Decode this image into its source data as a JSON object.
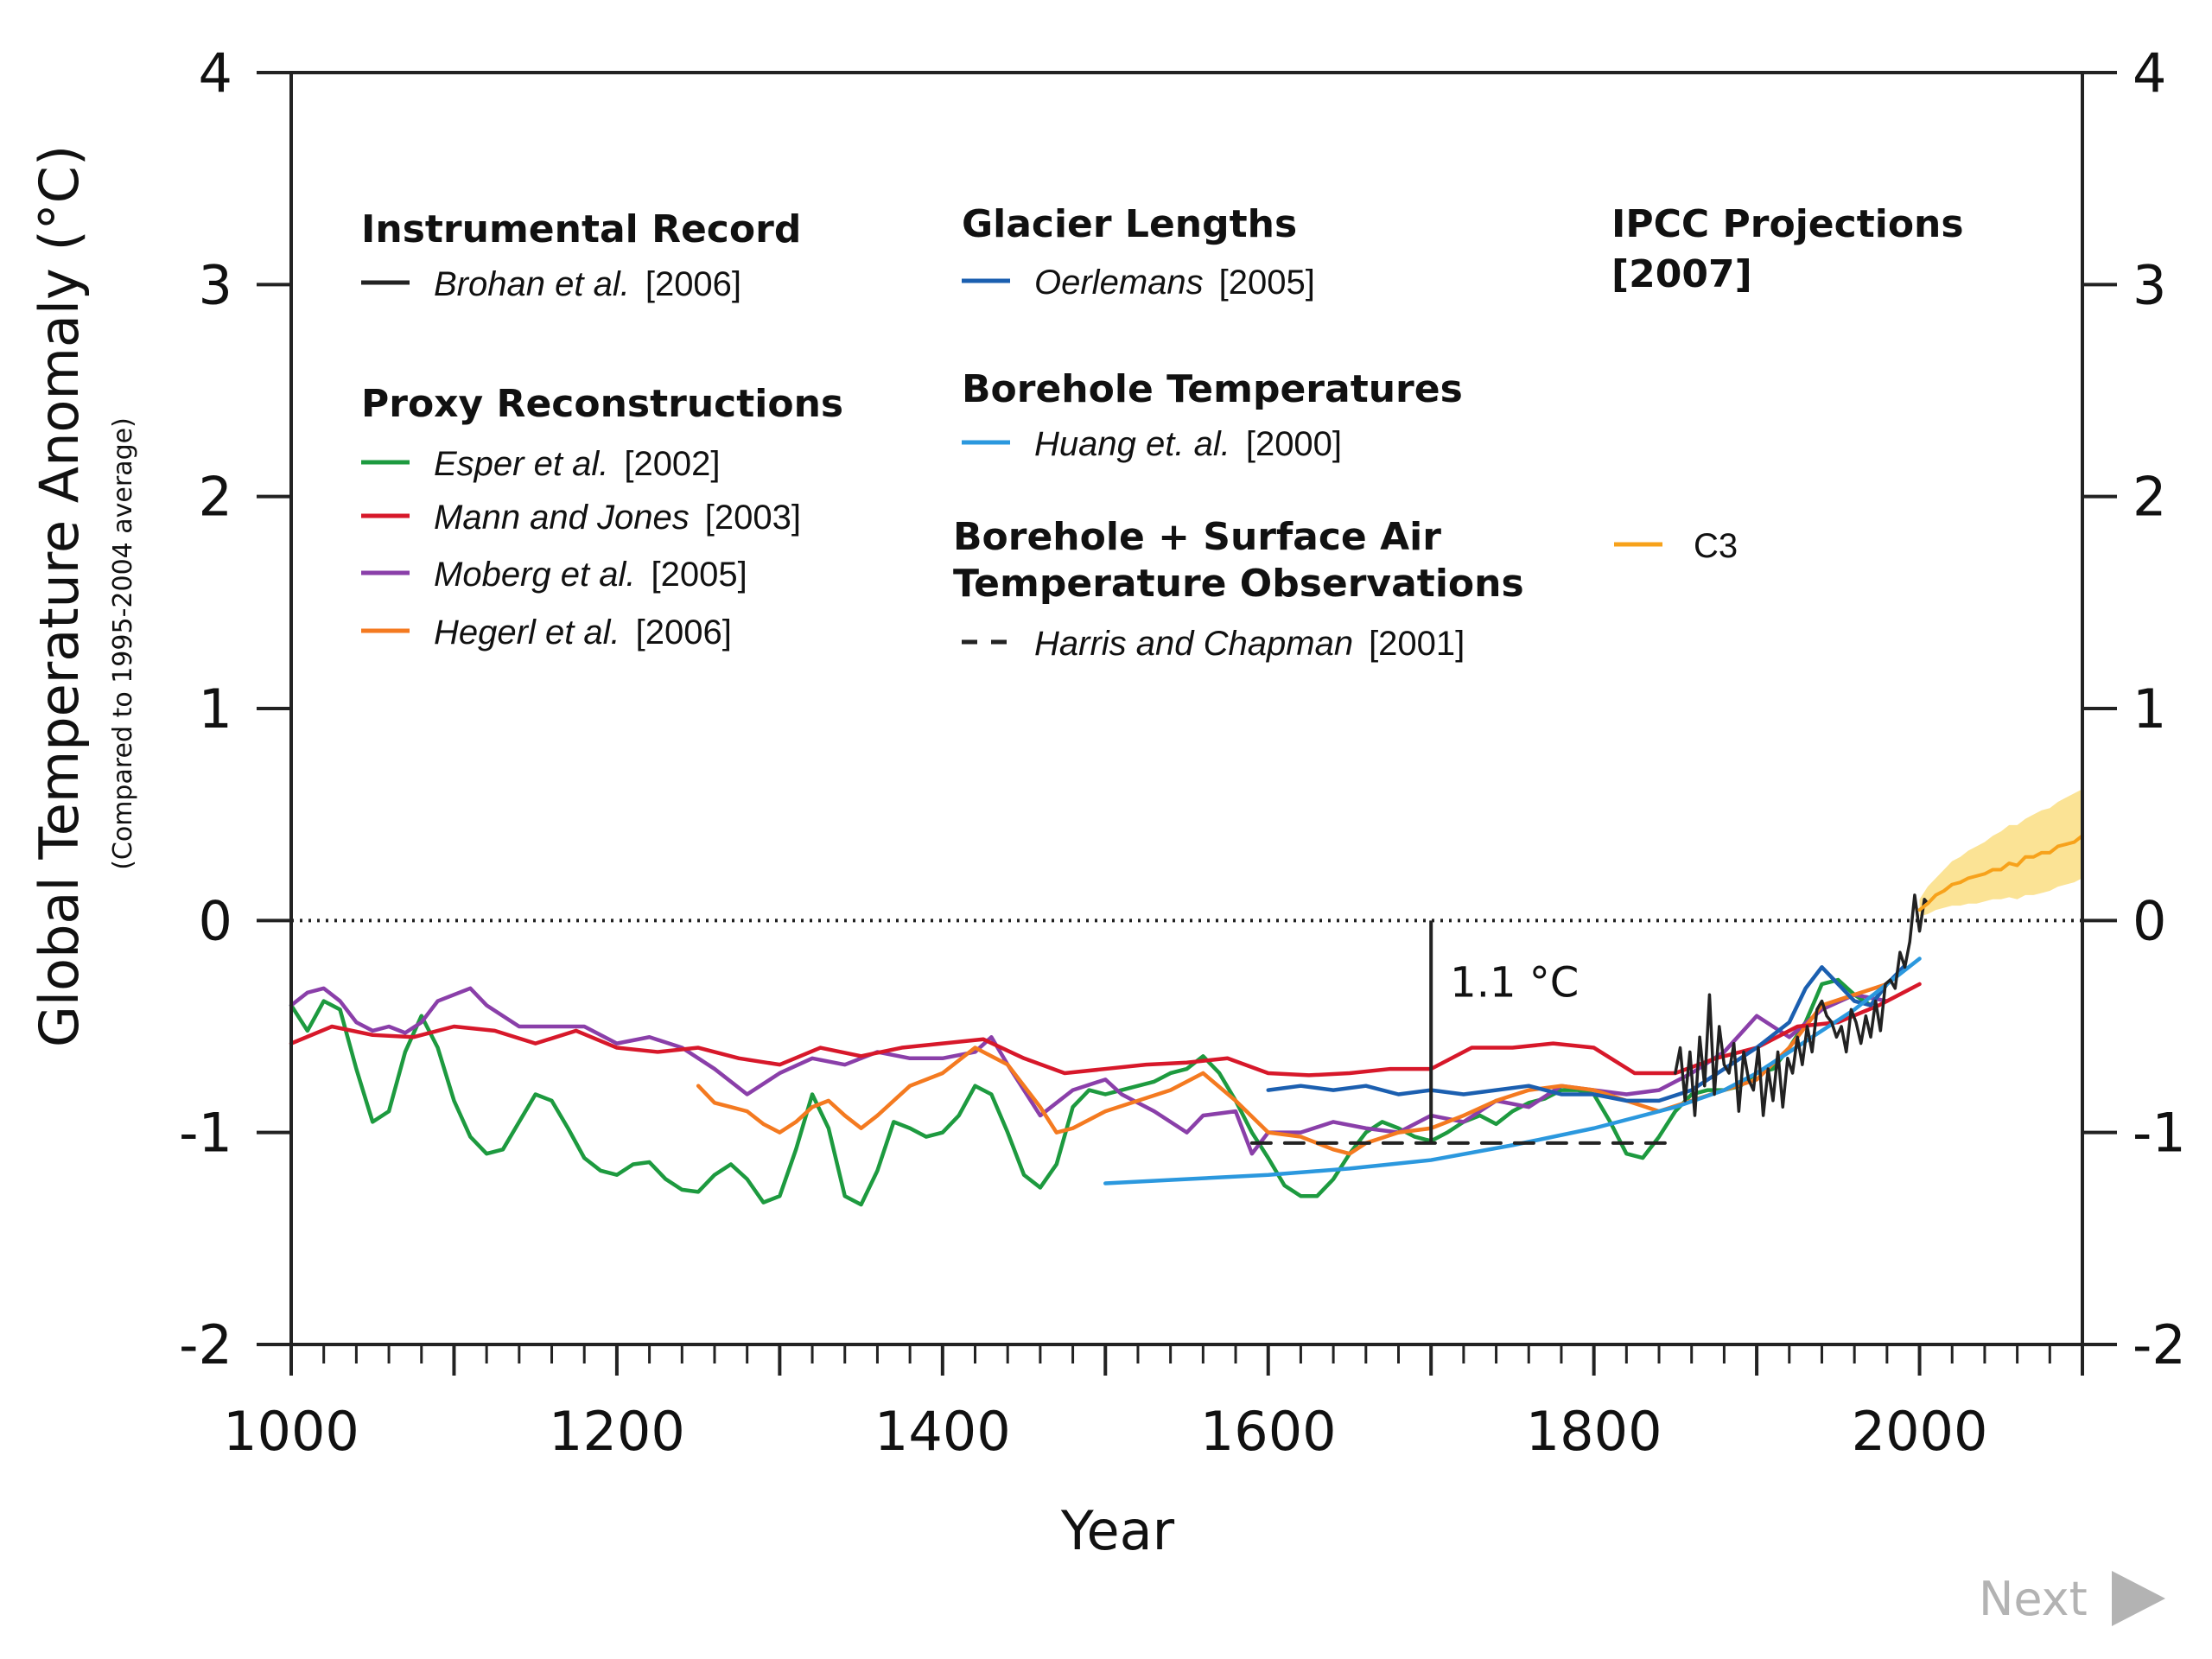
{
  "chart_data": {
    "type": "line",
    "title": "",
    "xlabel": "Year",
    "ylabel": "Global Temperature Anomaly (°C)",
    "ylabel_sub": "(Compared to 1995-2004 average)",
    "xlim": [
      1000,
      2100
    ],
    "ylim": [
      -2,
      4
    ],
    "x_ticks": [
      1000,
      1200,
      1400,
      1600,
      1800,
      2000
    ],
    "x_tick_labels": [
      "1000",
      "1200",
      "1400",
      "1600",
      "1800",
      "2000"
    ],
    "y_ticks": [
      -2,
      -1,
      0,
      1,
      2,
      3,
      4
    ],
    "y_tick_labels": [
      "-2",
      "-1",
      "0",
      "1",
      "2",
      "3",
      "4"
    ],
    "grid": false,
    "zero_line": "dotted",
    "legend": {
      "groups": [
        {
          "heading": "Instrumental Record",
          "entries": [
            {
              "author": "Brohan et al.",
              "year": "[2006]",
              "color": "#222222",
              "dash": false
            }
          ]
        },
        {
          "heading": "Proxy Reconstructions",
          "entries": [
            {
              "author": "Esper et al.",
              "year": "[2002]",
              "color": "#1d9a3f",
              "dash": false
            },
            {
              "author": "Mann and Jones",
              "year": "[2003]",
              "color": "#d7182a",
              "dash": false
            },
            {
              "author": "Moberg et al.",
              "year": "[2005]",
              "color": "#8a3fa9",
              "dash": false
            },
            {
              "author": "Hegerl et al.",
              "year": "[2006]",
              "color": "#f47a20",
              "dash": false
            }
          ]
        },
        {
          "heading": "Glacier Lengths",
          "entries": [
            {
              "author": "Oerlemans",
              "year": "[2005]",
              "color": "#1b5fb0",
              "dash": false
            }
          ]
        },
        {
          "heading": "Borehole Temperatures",
          "entries": [
            {
              "author": "Huang et. al.",
              "year": "[2000]",
              "color": "#2b98de",
              "dash": false
            }
          ]
        },
        {
          "heading_line1": "Borehole + Surface Air",
          "heading_line2": "Temperature Observations",
          "entries": [
            {
              "author": "Harris and Chapman",
              "year": "[2001]",
              "color": "#222222",
              "dash": true
            }
          ]
        },
        {
          "heading_line1": "IPCC  Projections",
          "heading_line2": "[2007]",
          "entries": [
            {
              "label": "C3",
              "color": "#f7a21b",
              "dash": false
            }
          ]
        }
      ]
    },
    "annotations": [
      {
        "text": "1.1 °C",
        "x": 1700,
        "y_from": 0,
        "y_to": -1.05
      }
    ],
    "series": [
      {
        "name": "Brohan et al. [2006]",
        "color": "#222222",
        "width": 3.5,
        "x": [
          1850,
          1853,
          1856,
          1859,
          1862,
          1865,
          1868,
          1871,
          1874,
          1877,
          1880,
          1883,
          1886,
          1889,
          1892,
          1895,
          1898,
          1901,
          1904,
          1907,
          1910,
          1913,
          1916,
          1919,
          1922,
          1925,
          1928,
          1931,
          1934,
          1937,
          1940,
          1943,
          1946,
          1949,
          1952,
          1955,
          1958,
          1961,
          1964,
          1967,
          1970,
          1973,
          1976,
          1979,
          1982,
          1985,
          1988,
          1991,
          1994,
          1997,
          2000,
          2003,
          2005
        ],
        "y": [
          -0.72,
          -0.6,
          -0.85,
          -0.62,
          -0.92,
          -0.55,
          -0.78,
          -0.35,
          -0.82,
          -0.5,
          -0.68,
          -0.72,
          -0.58,
          -0.9,
          -0.62,
          -0.75,
          -0.8,
          -0.6,
          -0.92,
          -0.7,
          -0.85,
          -0.62,
          -0.88,
          -0.65,
          -0.72,
          -0.55,
          -0.68,
          -0.5,
          -0.62,
          -0.42,
          -0.38,
          -0.45,
          -0.48,
          -0.55,
          -0.5,
          -0.62,
          -0.42,
          -0.48,
          -0.58,
          -0.45,
          -0.55,
          -0.38,
          -0.52,
          -0.3,
          -0.28,
          -0.32,
          -0.15,
          -0.22,
          -0.1,
          0.12,
          -0.05,
          0.1,
          0.08
        ]
      },
      {
        "name": "Esper et al. [2002]",
        "color": "#1d9a3f",
        "width": 4.5,
        "x": [
          1000,
          1010,
          1020,
          1030,
          1040,
          1050,
          1060,
          1070,
          1080,
          1090,
          1100,
          1110,
          1120,
          1130,
          1140,
          1150,
          1160,
          1170,
          1180,
          1190,
          1200,
          1210,
          1220,
          1230,
          1240,
          1250,
          1260,
          1270,
          1280,
          1290,
          1300,
          1310,
          1320,
          1330,
          1340,
          1350,
          1360,
          1370,
          1380,
          1390,
          1400,
          1410,
          1420,
          1430,
          1440,
          1450,
          1460,
          1470,
          1480,
          1490,
          1500,
          1510,
          1520,
          1530,
          1540,
          1550,
          1560,
          1570,
          1580,
          1590,
          1600,
          1610,
          1620,
          1630,
          1640,
          1650,
          1660,
          1670,
          1680,
          1690,
          1700,
          1710,
          1720,
          1730,
          1740,
          1750,
          1760,
          1770,
          1780,
          1790,
          1800,
          1810,
          1820,
          1830,
          1840,
          1850,
          1860,
          1870,
          1880,
          1890,
          1900,
          1910,
          1920,
          1930,
          1940,
          1950,
          1960,
          1970,
          1980
        ],
        "y": [
          -0.4,
          -0.52,
          -0.38,
          -0.42,
          -0.7,
          -0.95,
          -0.9,
          -0.62,
          -0.45,
          -0.6,
          -0.85,
          -1.02,
          -1.1,
          -1.08,
          -0.95,
          -0.82,
          -0.85,
          -0.98,
          -1.12,
          -1.18,
          -1.2,
          -1.15,
          -1.14,
          -1.22,
          -1.27,
          -1.28,
          -1.2,
          -1.15,
          -1.22,
          -1.33,
          -1.3,
          -1.08,
          -0.82,
          -0.98,
          -1.3,
          -1.34,
          -1.18,
          -0.95,
          -0.98,
          -1.02,
          -1.0,
          -0.92,
          -0.78,
          -0.82,
          -1.0,
          -1.2,
          -1.26,
          -1.15,
          -0.88,
          -0.8,
          -0.82,
          -0.8,
          -0.78,
          -0.76,
          -0.72,
          -0.7,
          -0.64,
          -0.72,
          -0.85,
          -1.0,
          -1.12,
          -1.25,
          -1.3,
          -1.3,
          -1.22,
          -1.1,
          -1.0,
          -0.95,
          -0.98,
          -1.02,
          -1.04,
          -1.0,
          -0.95,
          -0.92,
          -0.96,
          -0.9,
          -0.86,
          -0.84,
          -0.8,
          -0.8,
          -0.82,
          -0.95,
          -1.1,
          -1.12,
          -1.02,
          -0.9,
          -0.82,
          -0.8,
          -0.8,
          -0.78,
          -0.72,
          -0.7,
          -0.6,
          -0.48,
          -0.3,
          -0.28,
          -0.35,
          -0.4,
          -0.3
        ]
      },
      {
        "name": "Mann and Jones [2003]",
        "color": "#d7182a",
        "width": 4.5,
        "x": [
          1000,
          1025,
          1050,
          1075,
          1100,
          1125,
          1150,
          1175,
          1200,
          1225,
          1250,
          1275,
          1300,
          1325,
          1350,
          1375,
          1400,
          1425,
          1450,
          1475,
          1500,
          1525,
          1550,
          1575,
          1600,
          1625,
          1650,
          1675,
          1700,
          1725,
          1750,
          1775,
          1800,
          1825,
          1850,
          1875,
          1900,
          1925,
          1950,
          1975,
          2000
        ],
        "y": [
          -0.58,
          -0.5,
          -0.54,
          -0.55,
          -0.5,
          -0.52,
          -0.58,
          -0.52,
          -0.6,
          -0.62,
          -0.6,
          -0.65,
          -0.68,
          -0.6,
          -0.64,
          -0.6,
          -0.58,
          -0.56,
          -0.65,
          -0.72,
          -0.7,
          -0.68,
          -0.67,
          -0.65,
          -0.72,
          -0.73,
          -0.72,
          -0.7,
          -0.7,
          -0.6,
          -0.6,
          -0.58,
          -0.6,
          -0.72,
          -0.72,
          -0.65,
          -0.6,
          -0.5,
          -0.48,
          -0.4,
          -0.3
        ]
      },
      {
        "name": "Moberg et al. [2005]",
        "color": "#8a3fa9",
        "width": 4.5,
        "x": [
          1000,
          1010,
          1020,
          1030,
          1040,
          1050,
          1060,
          1070,
          1080,
          1090,
          1100,
          1110,
          1120,
          1140,
          1160,
          1180,
          1200,
          1220,
          1240,
          1260,
          1280,
          1300,
          1320,
          1340,
          1360,
          1380,
          1400,
          1420,
          1430,
          1440,
          1460,
          1480,
          1500,
          1510,
          1530,
          1550,
          1560,
          1580,
          1590,
          1600,
          1620,
          1640,
          1660,
          1680,
          1700,
          1720,
          1740,
          1760,
          1780,
          1800,
          1820,
          1840,
          1860,
          1880,
          1900,
          1910,
          1920,
          1940,
          1960,
          1980
        ],
        "y": [
          -0.4,
          -0.34,
          -0.32,
          -0.38,
          -0.48,
          -0.52,
          -0.5,
          -0.53,
          -0.48,
          -0.38,
          -0.35,
          -0.32,
          -0.4,
          -0.5,
          -0.5,
          -0.5,
          -0.58,
          -0.55,
          -0.6,
          -0.7,
          -0.82,
          -0.72,
          -0.65,
          -0.68,
          -0.62,
          -0.65,
          -0.65,
          -0.62,
          -0.55,
          -0.68,
          -0.92,
          -0.8,
          -0.75,
          -0.82,
          -0.9,
          -1.0,
          -0.92,
          -0.9,
          -1.1,
          -1.0,
          -1.0,
          -0.95,
          -0.98,
          -1.0,
          -0.92,
          -0.95,
          -0.85,
          -0.88,
          -0.78,
          -0.8,
          -0.82,
          -0.8,
          -0.72,
          -0.62,
          -0.45,
          -0.5,
          -0.55,
          -0.42,
          -0.35,
          -0.38
        ]
      },
      {
        "name": "Hegerl et al. [2006]",
        "color": "#f47a20",
        "width": 4.5,
        "x": [
          1250,
          1260,
          1270,
          1280,
          1290,
          1300,
          1310,
          1320,
          1330,
          1340,
          1350,
          1360,
          1370,
          1380,
          1400,
          1420,
          1440,
          1460,
          1470,
          1480,
          1500,
          1520,
          1540,
          1560,
          1580,
          1600,
          1620,
          1640,
          1650,
          1660,
          1680,
          1700,
          1720,
          1740,
          1760,
          1780,
          1800,
          1820,
          1840,
          1860,
          1880,
          1900,
          1920,
          1940,
          1960,
          1980
        ],
        "y": [
          -0.78,
          -0.86,
          -0.88,
          -0.9,
          -0.96,
          -1.0,
          -0.95,
          -0.88,
          -0.85,
          -0.92,
          -0.98,
          -0.92,
          -0.85,
          -0.78,
          -0.72,
          -0.6,
          -0.68,
          -0.88,
          -1.0,
          -0.98,
          -0.9,
          -0.85,
          -0.8,
          -0.72,
          -0.85,
          -1.0,
          -1.02,
          -1.08,
          -1.1,
          -1.05,
          -1.0,
          -0.98,
          -0.92,
          -0.85,
          -0.8,
          -0.78,
          -0.8,
          -0.85,
          -0.9,
          -0.85,
          -0.8,
          -0.75,
          -0.6,
          -0.4,
          -0.35,
          -0.3
        ]
      },
      {
        "name": "Oerlemans [2005]",
        "color": "#1b5fb0",
        "width": 4.5,
        "x": [
          1600,
          1620,
          1640,
          1660,
          1680,
          1700,
          1720,
          1740,
          1760,
          1780,
          1800,
          1820,
          1840,
          1860,
          1880,
          1900,
          1920,
          1930,
          1940,
          1950,
          1960,
          1970,
          1980,
          1990
        ],
        "y": [
          -0.8,
          -0.78,
          -0.8,
          -0.78,
          -0.82,
          -0.8,
          -0.82,
          -0.8,
          -0.78,
          -0.82,
          -0.82,
          -0.85,
          -0.85,
          -0.8,
          -0.7,
          -0.6,
          -0.48,
          -0.32,
          -0.22,
          -0.3,
          -0.38,
          -0.4,
          -0.3,
          -0.22
        ]
      },
      {
        "name": "Huang et. al. [2000]",
        "color": "#2b98de",
        "width": 4.5,
        "x": [
          1500,
          1550,
          1600,
          1650,
          1700,
          1750,
          1800,
          1850,
          1880,
          1900,
          1920,
          1940,
          1960,
          1980,
          2000
        ],
        "y": [
          -1.24,
          -1.22,
          -1.2,
          -1.17,
          -1.13,
          -1.06,
          -0.98,
          -0.88,
          -0.8,
          -0.72,
          -0.62,
          -0.52,
          -0.42,
          -0.3,
          -0.18
        ]
      },
      {
        "name": "Harris and Chapman [2001]",
        "color": "#222222",
        "width": 4,
        "dash": true,
        "x": [
          1590,
          1850
        ],
        "y": [
          -1.05,
          -1.05
        ]
      },
      {
        "name": "C3",
        "color": "#f7a21b",
        "width": 4,
        "x": [
          2000,
          2005,
          2010,
          2015,
          2020,
          2025,
          2030,
          2035,
          2040,
          2045,
          2050,
          2055,
          2060,
          2065,
          2070,
          2075,
          2080,
          2085,
          2090,
          2095,
          2100
        ],
        "y": [
          0.05,
          0.08,
          0.12,
          0.14,
          0.17,
          0.18,
          0.2,
          0.21,
          0.22,
          0.24,
          0.24,
          0.27,
          0.26,
          0.3,
          0.3,
          0.32,
          0.32,
          0.35,
          0.36,
          0.37,
          0.4
        ],
        "band_upper": [
          0.1,
          0.16,
          0.2,
          0.24,
          0.28,
          0.3,
          0.33,
          0.35,
          0.37,
          0.4,
          0.42,
          0.45,
          0.45,
          0.48,
          0.5,
          0.52,
          0.53,
          0.56,
          0.58,
          0.6,
          0.62
        ],
        "band_lower": [
          0.02,
          0.03,
          0.05,
          0.06,
          0.07,
          0.07,
          0.08,
          0.08,
          0.09,
          0.1,
          0.1,
          0.11,
          0.1,
          0.12,
          0.12,
          0.13,
          0.14,
          0.16,
          0.17,
          0.18,
          0.2
        ],
        "band_color": "#fbe08a"
      }
    ]
  },
  "nav": {
    "next_label": "Next"
  }
}
